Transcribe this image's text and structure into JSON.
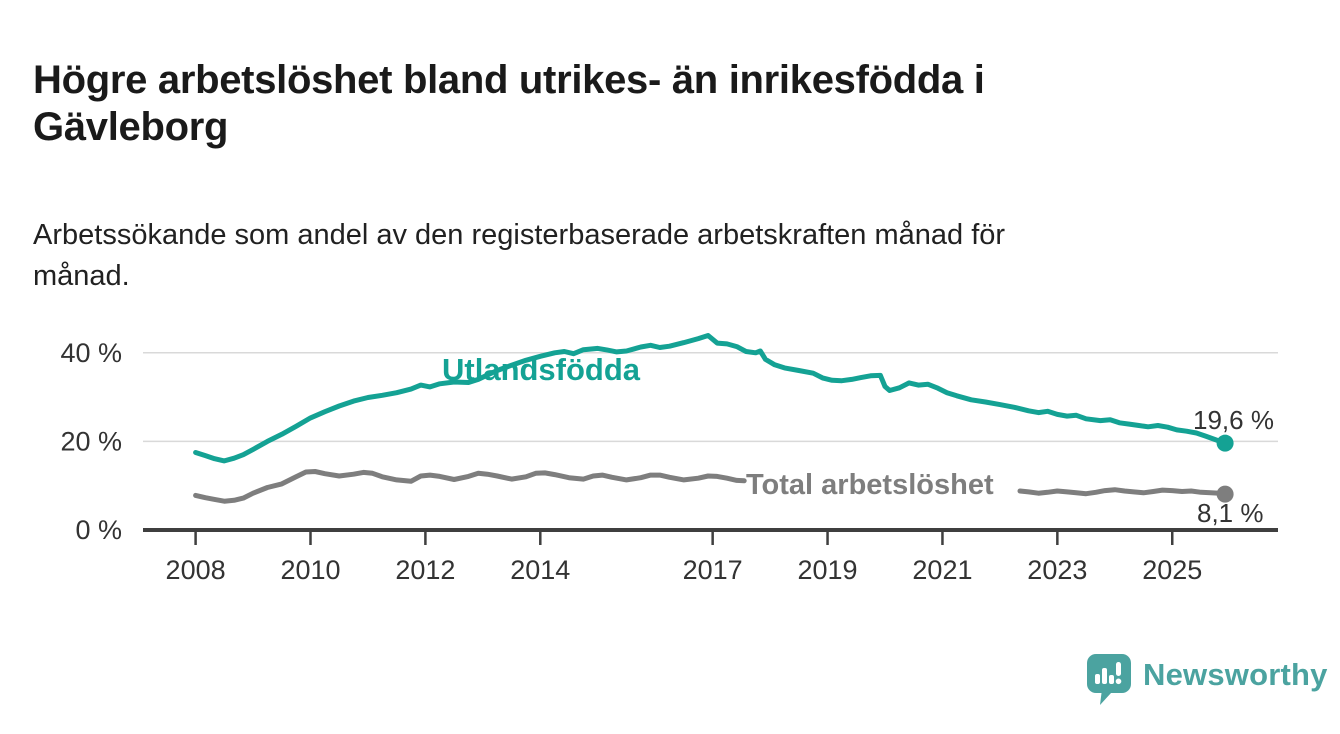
{
  "header": {
    "title": "Högre arbetslöshet bland utrikes- än inrikesfödda i\nGävleborg",
    "subtitle": "Arbetssökande som andel av den registerbaserade arbetskraften månad för\nmånad."
  },
  "footer": {
    "brand": "Newsworthy",
    "brand_color": "#4ba3a0",
    "logo_icon": "speech-bubble-bar-chart-icon"
  },
  "chart_data": {
    "type": "line",
    "unit": "%",
    "grid": "horizontal",
    "legend_position": "inline-labels",
    "xlim": [
      2007.85,
      2026.15
    ],
    "ylim": [
      0,
      46
    ],
    "y_ticks": [
      {
        "value": 0,
        "label": "0 %"
      },
      {
        "value": 20,
        "label": "20 %"
      },
      {
        "value": 40,
        "label": "40 %"
      }
    ],
    "x_ticks": [
      {
        "value": 2008,
        "label": "2008"
      },
      {
        "value": 2010,
        "label": "2010"
      },
      {
        "value": 2012,
        "label": "2012"
      },
      {
        "value": 2014,
        "label": "2014"
      },
      {
        "value": 2017,
        "label": "2017"
      },
      {
        "value": 2019,
        "label": "2019"
      },
      {
        "value": 2021,
        "label": "2021"
      },
      {
        "value": 2023,
        "label": "2023"
      },
      {
        "value": 2025,
        "label": "2025"
      }
    ],
    "series": [
      {
        "name": "Utlandsfödda",
        "color": "#14a294",
        "end_label": "19,6 %",
        "end_value": 19.6,
        "segments": [
          [
            [
              2008.0,
              17.5
            ],
            [
              2008.17,
              16.8
            ],
            [
              2008.33,
              16.1
            ],
            [
              2008.5,
              15.6
            ],
            [
              2008.67,
              16.2
            ],
            [
              2008.83,
              17.0
            ],
            [
              2009.0,
              18.2
            ],
            [
              2009.25,
              20.0
            ],
            [
              2009.5,
              21.6
            ],
            [
              2009.75,
              23.4
            ],
            [
              2010.0,
              25.3
            ],
            [
              2010.25,
              26.7
            ],
            [
              2010.5,
              28.0
            ],
            [
              2010.75,
              29.1
            ],
            [
              2011.0,
              29.9
            ],
            [
              2011.25,
              30.4
            ],
            [
              2011.5,
              31.0
            ],
            [
              2011.75,
              31.8
            ],
            [
              2011.92,
              32.7
            ],
            [
              2012.08,
              32.3
            ],
            [
              2012.25,
              33.0
            ],
            [
              2012.5,
              33.4
            ],
            [
              2012.75,
              33.3
            ],
            [
              2012.92,
              34.0
            ],
            [
              2013.08,
              35.0
            ],
            [
              2013.25,
              36.0
            ],
            [
              2013.5,
              37.2
            ],
            [
              2013.75,
              38.3
            ],
            [
              2014.0,
              39.2
            ],
            [
              2014.25,
              40.0
            ],
            [
              2014.42,
              40.3
            ],
            [
              2014.58,
              39.8
            ],
            [
              2014.75,
              40.7
            ],
            [
              2015.0,
              41.0
            ],
            [
              2015.17,
              40.6
            ],
            [
              2015.33,
              40.2
            ],
            [
              2015.5,
              40.4
            ],
            [
              2015.75,
              41.3
            ],
            [
              2015.92,
              41.7
            ],
            [
              2016.08,
              41.2
            ],
            [
              2016.25,
              41.5
            ],
            [
              2016.5,
              42.3
            ],
            [
              2016.75,
              43.2
            ],
            [
              2016.92,
              43.9
            ],
            [
              2017.08,
              42.2
            ],
            [
              2017.25,
              42.0
            ],
            [
              2017.42,
              41.4
            ],
            [
              2017.58,
              40.3
            ],
            [
              2017.75,
              40.0
            ],
            [
              2017.83,
              40.4
            ],
            [
              2017.92,
              38.5
            ],
            [
              2018.08,
              37.3
            ],
            [
              2018.25,
              36.6
            ],
            [
              2018.5,
              36.0
            ],
            [
              2018.75,
              35.4
            ],
            [
              2018.92,
              34.3
            ],
            [
              2019.08,
              33.8
            ],
            [
              2019.25,
              33.7
            ],
            [
              2019.42,
              34.0
            ],
            [
              2019.58,
              34.4
            ],
            [
              2019.75,
              34.8
            ],
            [
              2019.92,
              34.9
            ],
            [
              2020.0,
              32.4
            ],
            [
              2020.08,
              31.5
            ],
            [
              2020.25,
              32.1
            ],
            [
              2020.42,
              33.2
            ],
            [
              2020.58,
              32.7
            ],
            [
              2020.75,
              32.9
            ],
            [
              2020.92,
              32.0
            ],
            [
              2021.08,
              31.0
            ],
            [
              2021.25,
              30.3
            ],
            [
              2021.5,
              29.4
            ],
            [
              2021.75,
              28.9
            ],
            [
              2022.0,
              28.3
            ],
            [
              2022.25,
              27.7
            ],
            [
              2022.5,
              26.9
            ],
            [
              2022.67,
              26.5
            ],
            [
              2022.83,
              26.8
            ],
            [
              2023.0,
              26.1
            ],
            [
              2023.17,
              25.7
            ],
            [
              2023.33,
              25.9
            ],
            [
              2023.5,
              25.1
            ],
            [
              2023.75,
              24.7
            ],
            [
              2023.92,
              24.9
            ],
            [
              2024.08,
              24.2
            ],
            [
              2024.25,
              23.9
            ],
            [
              2024.42,
              23.6
            ],
            [
              2024.58,
              23.3
            ],
            [
              2024.75,
              23.6
            ],
            [
              2024.92,
              23.2
            ],
            [
              2025.08,
              22.6
            ],
            [
              2025.25,
              22.3
            ],
            [
              2025.42,
              21.9
            ],
            [
              2025.58,
              21.2
            ],
            [
              2025.75,
              20.4
            ],
            [
              2025.92,
              19.6
            ]
          ]
        ]
      },
      {
        "name": "Total arbetslöshet",
        "color": "#7e7e7e",
        "end_label": "8,1 %",
        "end_value": 8.1,
        "segments": [
          [
            [
              2008.0,
              7.8
            ],
            [
              2008.17,
              7.3
            ],
            [
              2008.33,
              6.9
            ],
            [
              2008.5,
              6.5
            ],
            [
              2008.67,
              6.7
            ],
            [
              2008.83,
              7.2
            ],
            [
              2009.0,
              8.3
            ],
            [
              2009.25,
              9.6
            ],
            [
              2009.5,
              10.4
            ],
            [
              2009.75,
              12.0
            ],
            [
              2009.92,
              13.1
            ],
            [
              2010.08,
              13.2
            ],
            [
              2010.25,
              12.7
            ],
            [
              2010.5,
              12.2
            ],
            [
              2010.75,
              12.6
            ],
            [
              2010.92,
              13.0
            ],
            [
              2011.08,
              12.8
            ],
            [
              2011.25,
              12.0
            ],
            [
              2011.5,
              11.3
            ],
            [
              2011.75,
              11.0
            ],
            [
              2011.92,
              12.2
            ],
            [
              2012.08,
              12.4
            ],
            [
              2012.25,
              12.1
            ],
            [
              2012.5,
              11.4
            ],
            [
              2012.75,
              12.1
            ],
            [
              2012.92,
              12.8
            ],
            [
              2013.08,
              12.6
            ],
            [
              2013.25,
              12.2
            ],
            [
              2013.5,
              11.5
            ],
            [
              2013.75,
              12.0
            ],
            [
              2013.92,
              12.8
            ],
            [
              2014.08,
              12.9
            ],
            [
              2014.25,
              12.5
            ],
            [
              2014.5,
              11.8
            ],
            [
              2014.75,
              11.5
            ],
            [
              2014.92,
              12.2
            ],
            [
              2015.08,
              12.4
            ],
            [
              2015.25,
              11.9
            ],
            [
              2015.5,
              11.3
            ],
            [
              2015.75,
              11.8
            ],
            [
              2015.92,
              12.4
            ],
            [
              2016.08,
              12.4
            ],
            [
              2016.25,
              11.9
            ],
            [
              2016.5,
              11.3
            ],
            [
              2016.75,
              11.7
            ],
            [
              2016.92,
              12.2
            ],
            [
              2017.08,
              12.1
            ],
            [
              2017.25,
              11.7
            ],
            [
              2017.42,
              11.2
            ],
            [
              2017.55,
              11.1
            ]
          ],
          [
            [
              2022.35,
              8.8
            ],
            [
              2022.5,
              8.6
            ],
            [
              2022.67,
              8.3
            ],
            [
              2022.83,
              8.5
            ],
            [
              2023.0,
              8.8
            ],
            [
              2023.17,
              8.6
            ],
            [
              2023.33,
              8.4
            ],
            [
              2023.5,
              8.2
            ],
            [
              2023.67,
              8.5
            ],
            [
              2023.83,
              8.9
            ],
            [
              2024.0,
              9.1
            ],
            [
              2024.17,
              8.8
            ],
            [
              2024.33,
              8.6
            ],
            [
              2024.5,
              8.4
            ],
            [
              2024.67,
              8.7
            ],
            [
              2024.83,
              9.0
            ],
            [
              2025.0,
              8.9
            ],
            [
              2025.17,
              8.7
            ],
            [
              2025.33,
              8.8
            ],
            [
              2025.5,
              8.5
            ],
            [
              2025.67,
              8.4
            ],
            [
              2025.83,
              8.3
            ],
            [
              2025.92,
              8.1
            ]
          ]
        ]
      }
    ]
  }
}
